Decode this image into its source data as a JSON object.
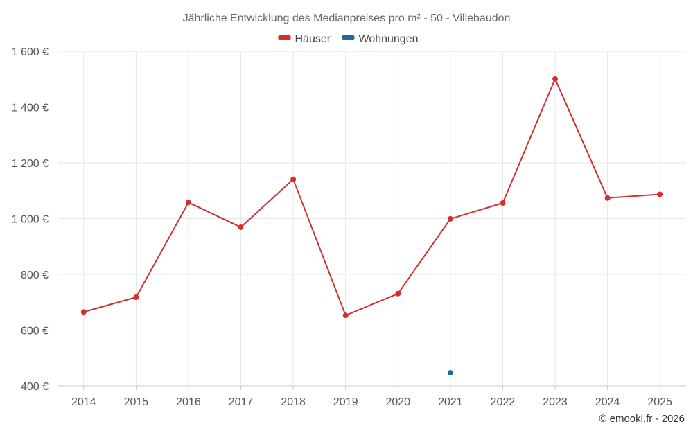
{
  "chart_data": {
    "type": "line",
    "title": "Jährliche Entwicklung des Medianpreises pro m² - 50 - Villebaudon",
    "categories": [
      "2014",
      "2015",
      "2016",
      "2017",
      "2018",
      "2019",
      "2020",
      "2021",
      "2022",
      "2023",
      "2024",
      "2025"
    ],
    "ylim": [
      400,
      1600
    ],
    "yticks": [
      400,
      600,
      800,
      1000,
      1200,
      1400,
      1600
    ],
    "ytick_labels": [
      "400 €",
      "600 €",
      "800 €",
      "1 000 €",
      "1 200 €",
      "1 400 €",
      "1 600 €"
    ],
    "xlabel": "",
    "ylabel": "",
    "grid": true,
    "legend_position": "top-center",
    "series": [
      {
        "name": "Häuser",
        "color": "#d32f2f",
        "values": [
          665,
          718,
          1058,
          969,
          1141,
          653,
          731,
          999,
          1056,
          1501,
          1074,
          1087
        ]
      },
      {
        "name": "Wohnungen",
        "color": "#1f6aa5",
        "values": [
          null,
          null,
          null,
          null,
          null,
          null,
          null,
          447,
          null,
          null,
          null,
          null
        ]
      }
    ]
  },
  "credit": "© emooki.fr - 2026"
}
